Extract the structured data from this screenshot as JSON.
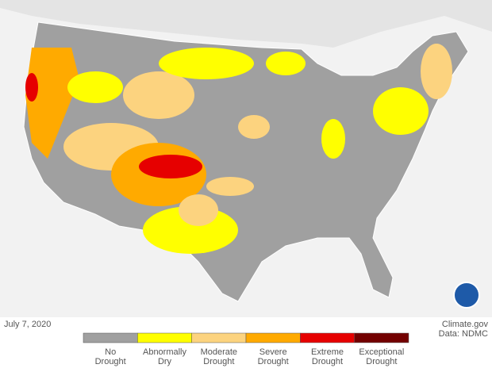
{
  "date": "July 7, 2020",
  "credit": [
    "Climate.gov",
    "Data: NDMC"
  ],
  "legend": {
    "items": [
      {
        "label": [
          "No",
          "Drought"
        ],
        "color": "#a0a0a0"
      },
      {
        "label": [
          "Abnormally",
          "Dry"
        ],
        "color": "#ffff00"
      },
      {
        "label": [
          "Moderate",
          "Drought"
        ],
        "color": "#fcd37f"
      },
      {
        "label": [
          "Severe",
          "Drought"
        ],
        "color": "#ffaa00"
      },
      {
        "label": [
          "Extreme",
          "Drought"
        ],
        "color": "#e60000"
      },
      {
        "label": [
          "Exceptional",
          "Drought"
        ],
        "color": "#730000"
      }
    ]
  }
}
